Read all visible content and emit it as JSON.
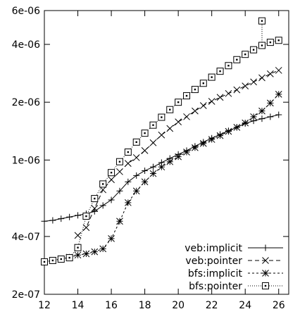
{
  "chart_data": {
    "type": "line",
    "title": "",
    "xlabel": "",
    "ylabel": "",
    "scale": {
      "y": "log"
    },
    "xlim": [
      12,
      26.6
    ],
    "ylim": [
      2e-07,
      6e-06
    ],
    "grid": false,
    "legend_position": "bottom-right",
    "x_ticks": [
      12,
      14,
      16,
      18,
      20,
      22,
      24,
      26
    ],
    "x_tick_labels": [
      "12",
      "14",
      "16",
      "18",
      "20",
      "22",
      "24",
      "26"
    ],
    "y_ticks": [
      2e-07,
      4e-07,
      1e-06,
      2e-06,
      4e-06,
      6e-06
    ],
    "y_tick_labels": [
      "2e-07",
      "4e-07",
      "1e-06",
      "2e-06",
      "4e-06",
      "6e-06"
    ],
    "x": [
      12,
      12.5,
      13,
      13.5,
      14,
      14.5,
      15,
      15.5,
      16,
      16.5,
      17,
      17.5,
      18,
      18.5,
      19,
      19.5,
      20,
      20.5,
      21,
      21.5,
      22,
      22.5,
      23,
      23.5,
      24,
      24.5,
      25,
      25.5,
      26
    ],
    "series": [
      {
        "name": "veb:implicit",
        "marker": "plus",
        "dash": "",
        "values": [
          4.8e-07,
          4.85e-07,
          4.95e-07,
          5.05e-07,
          5.15e-07,
          5.25e-07,
          5.4e-07,
          5.8e-07,
          6.2e-07,
          6.9e-07,
          7.7e-07,
          8.3e-07,
          8.8e-07,
          9.2e-07,
          9.7e-07,
          1.02e-06,
          1.07e-06,
          1.12e-06,
          1.18e-06,
          1.24e-06,
          1.3e-06,
          1.36e-06,
          1.42e-06,
          1.48e-06,
          1.55e-06,
          1.6e-06,
          1.64e-06,
          1.68e-06,
          1.72e-06
        ]
      },
      {
        "name": "veb:pointer",
        "marker": "x",
        "dash": "6,4",
        "values": [
          null,
          null,
          null,
          null,
          4.05e-07,
          4.45e-07,
          5.6e-07,
          7e-07,
          7.9e-07,
          8.7e-07,
          9.6e-07,
          1.03e-06,
          1.12e-06,
          1.23e-06,
          1.35e-06,
          1.46e-06,
          1.58e-06,
          1.68e-06,
          1.8e-06,
          1.92e-06,
          2.02e-06,
          2.12e-06,
          2.22e-06,
          2.32e-06,
          2.43e-06,
          2.55e-06,
          2.68e-06,
          2.81e-06,
          2.93e-06
        ]
      },
      {
        "name": "bfs:implicit",
        "marker": "star",
        "dash": "3,3",
        "values": [
          2.95e-07,
          3e-07,
          3.06e-07,
          3.12e-07,
          3.2e-07,
          3.25e-07,
          3.33e-07,
          3.45e-07,
          3.9e-07,
          4.8e-07,
          6e-07,
          6.9e-07,
          7.7e-07,
          8.5e-07,
          9.2e-07,
          9.8e-07,
          1.04e-06,
          1.1e-06,
          1.16e-06,
          1.22e-06,
          1.28e-06,
          1.34e-06,
          1.41e-06,
          1.48e-06,
          1.56e-06,
          1.68e-06,
          1.8e-06,
          1.98e-06,
          2.2e-06
        ]
      },
      {
        "name": "bfs:pointer",
        "marker": "square",
        "dash": "1,2",
        "values": [
          2.95e-07,
          3e-07,
          3.05e-07,
          3.1e-07,
          3.5e-07,
          5.1e-07,
          6.3e-07,
          7.5e-07,
          8.6e-07,
          9.8e-07,
          1.1e-06,
          1.24e-06,
          1.38e-06,
          1.52e-06,
          1.67e-06,
          1.83e-06,
          2e-06,
          2.16e-06,
          2.33e-06,
          2.51e-06,
          2.7e-06,
          2.9e-06,
          3.1e-06,
          3.33e-06,
          3.55e-06,
          3.75e-06,
          3.95e-06,
          4.1e-06,
          4.2e-06
        ]
      }
    ],
    "extra_points": [
      {
        "series": "bfs:pointer",
        "x": 25,
        "y": 5.3e-06
      }
    ]
  }
}
